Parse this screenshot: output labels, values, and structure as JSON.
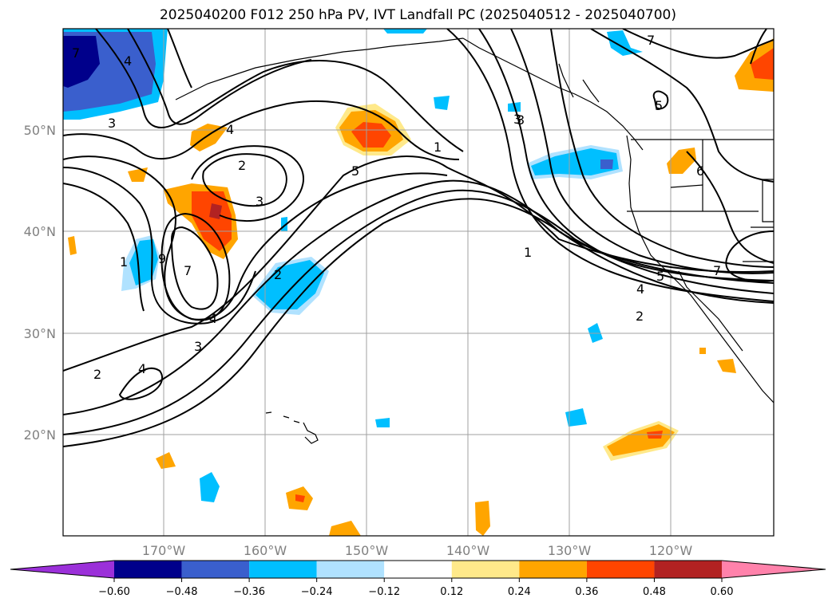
{
  "title": "2025040200 F012 250 hPa PV, IVT Landfall PC (2025040512 - 2025040700)",
  "map": {
    "lat_labels": [
      "50°N",
      "40°N",
      "30°N",
      "20°N"
    ],
    "lon_labels": [
      "170°W",
      "160°W",
      "150°W",
      "140°W",
      "130°W",
      "120°W"
    ],
    "contour_labels": [
      "7",
      "4",
      "3",
      "4",
      "2",
      "3",
      "5",
      "1",
      "1",
      "9",
      "7",
      "2",
      "4",
      "3",
      "2",
      "4",
      "3",
      "1",
      "4",
      "5",
      "2",
      "7",
      "6",
      "5",
      "7",
      "3"
    ]
  },
  "colorbar": {
    "ticks": [
      "−0.60",
      "−0.48",
      "−0.36",
      "−0.24",
      "−0.12",
      "0.12",
      "0.24",
      "0.36",
      "0.48",
      "0.60"
    ],
    "colors": [
      "#9b30d9",
      "#00008b",
      "#3a5fcd",
      "#00bfff",
      "#b0e2ff",
      "#ffffff",
      "#ffe98a",
      "#ffa500",
      "#ff4500",
      "#b22222",
      "#ff82ab"
    ]
  }
}
